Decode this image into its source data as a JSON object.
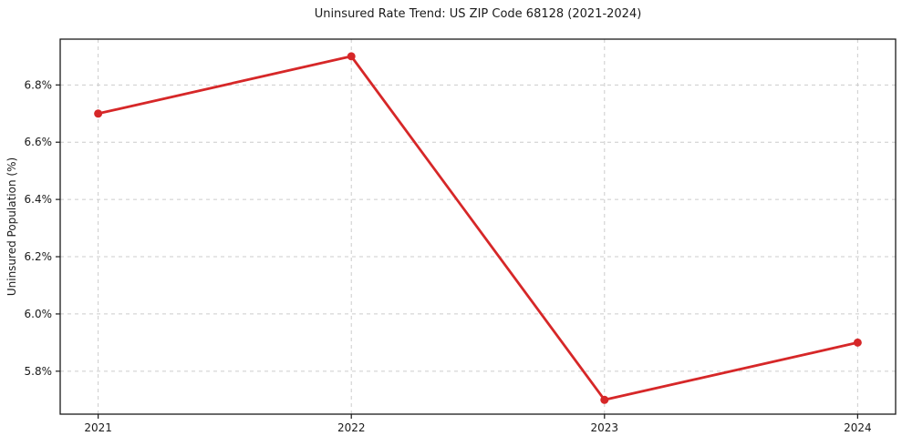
{
  "chart_data": {
    "type": "line",
    "title": "Uninsured Rate Trend: US ZIP Code 68128 (2021-2024)",
    "xlabel": "",
    "ylabel": "Uninsured Population (%)",
    "x": [
      2021,
      2022,
      2023,
      2024
    ],
    "values": [
      6.7,
      6.9,
      5.7,
      5.9
    ],
    "x_tick_labels": [
      "2021",
      "2022",
      "2023",
      "2024"
    ],
    "y_ticks": [
      5.8,
      6.0,
      6.2,
      6.4,
      6.6,
      6.8
    ],
    "y_tick_labels": [
      "5.8%",
      "6.0%",
      "6.2%",
      "6.4%",
      "6.6%",
      "6.8%"
    ],
    "xlim": [
      2020.85,
      2024.15
    ],
    "ylim": [
      5.65,
      6.96
    ],
    "grid": "dashed",
    "legend_position": "none",
    "line_color": "#d62728",
    "marker": "circle",
    "grid_color": "#cccccc",
    "axis_color": "#1a1a1a",
    "text_color": "#1a1a1a"
  }
}
